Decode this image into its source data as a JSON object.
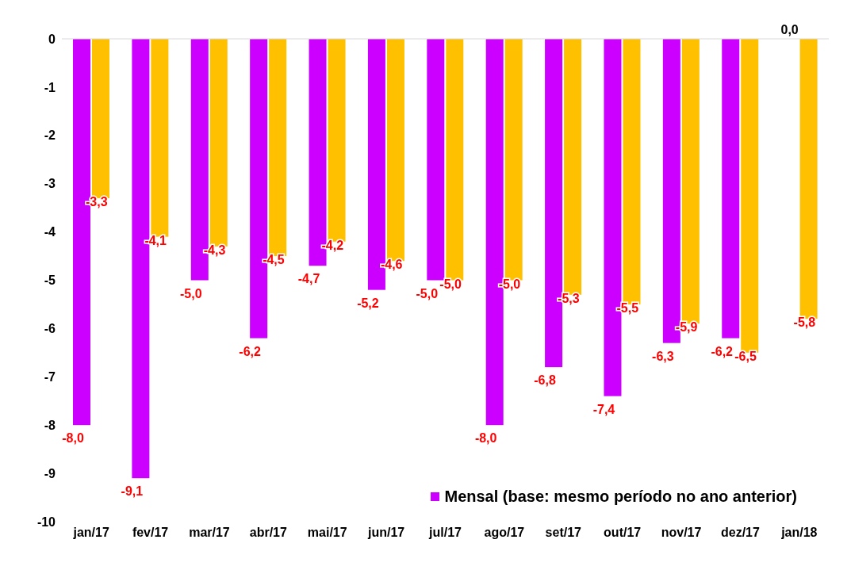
{
  "chart_data": {
    "type": "bar",
    "categories": [
      "jan/17",
      "fev/17",
      "mar/17",
      "abr/17",
      "mai/17",
      "jun/17",
      "jul/17",
      "ago/17",
      "set/17",
      "out/17",
      "nov/17",
      "dez/17",
      "jan/18"
    ],
    "series": [
      {
        "name": "Mensal (base: mesmo período no ano anterior)",
        "color": "#cc00ff",
        "values": [
          -8.0,
          -9.1,
          -5.0,
          -6.2,
          -4.7,
          -5.2,
          -5.0,
          -8.0,
          -6.8,
          -7.4,
          -6.3,
          -6.2,
          0.0
        ],
        "value_labels": [
          "-8,0",
          "-9,1",
          "-5,0",
          "-6,2",
          "-4,7",
          "-5,2",
          "-5,0",
          "-8,0",
          "-6,8",
          "-7,4",
          "-6,3",
          "-6,2",
          "0,0"
        ]
      },
      {
        "color": "#ffc000",
        "values": [
          -3.3,
          -4.1,
          -4.3,
          -4.5,
          -4.2,
          -4.6,
          -5.0,
          -5.0,
          -5.3,
          -5.5,
          -5.9,
          -6.5,
          -5.8
        ],
        "value_labels": [
          "-3,3",
          "-4,1",
          "-4,3",
          "-4,5",
          "-4,2",
          "-4,6",
          "-5,0",
          "-5,0",
          "-5,3",
          "-5,5",
          "-5,9",
          "-6,5",
          "-5,8"
        ]
      }
    ],
    "ylim": [
      -10,
      0
    ],
    "yticks": [
      -10,
      -9,
      -8,
      -7,
      -6,
      -5,
      -4,
      -3,
      -2,
      -1,
      0
    ],
    "grid": false,
    "legend": "bottom right"
  }
}
